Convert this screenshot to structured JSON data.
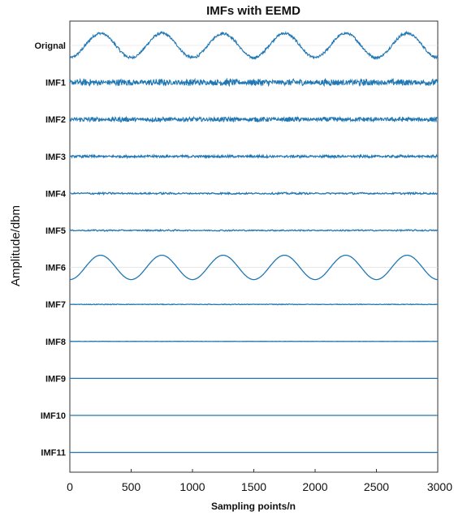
{
  "chart_data": {
    "type": "line",
    "title": "IMFs with EEMD",
    "xlabel": "Sampling points/n",
    "ylabel": "Amplitude/dbm",
    "xlim": [
      0,
      3000
    ],
    "x_ticks": [
      "0",
      "500",
      "1000",
      "1500",
      "2000",
      "2500",
      "3000"
    ],
    "color": "#1f77b4",
    "grid": false,
    "series": [
      {
        "name": "Orignal",
        "shape": "sinusoid plus noise",
        "sine_cycles": 6,
        "sine_amplitude": 1.0,
        "noise_amplitude": 0.12
      },
      {
        "name": "IMF1",
        "shape": "high-frequency noise",
        "noise_amplitude": 0.28
      },
      {
        "name": "IMF2",
        "shape": "high-frequency noise",
        "noise_amplitude": 0.2
      },
      {
        "name": "IMF3",
        "shape": "noise",
        "noise_amplitude": 0.11
      },
      {
        "name": "IMF4",
        "shape": "small oscillation",
        "noise_amplitude": 0.08
      },
      {
        "name": "IMF5",
        "shape": "small oscillation",
        "noise_amplitude": 0.06
      },
      {
        "name": "IMF6",
        "shape": "sinusoid",
        "sine_cycles": 6,
        "sine_amplitude": 1.0
      },
      {
        "name": "IMF7",
        "shape": "near-flat trend",
        "noise_amplitude": 0.03
      },
      {
        "name": "IMF8",
        "shape": "flat",
        "noise_amplitude": 0.01
      },
      {
        "name": "IMF9",
        "shape": "flat",
        "noise_amplitude": 0.0
      },
      {
        "name": "IMF10",
        "shape": "flat",
        "noise_amplitude": 0.0
      },
      {
        "name": "IMF11",
        "shape": "flat",
        "noise_amplitude": 0.0
      }
    ]
  }
}
